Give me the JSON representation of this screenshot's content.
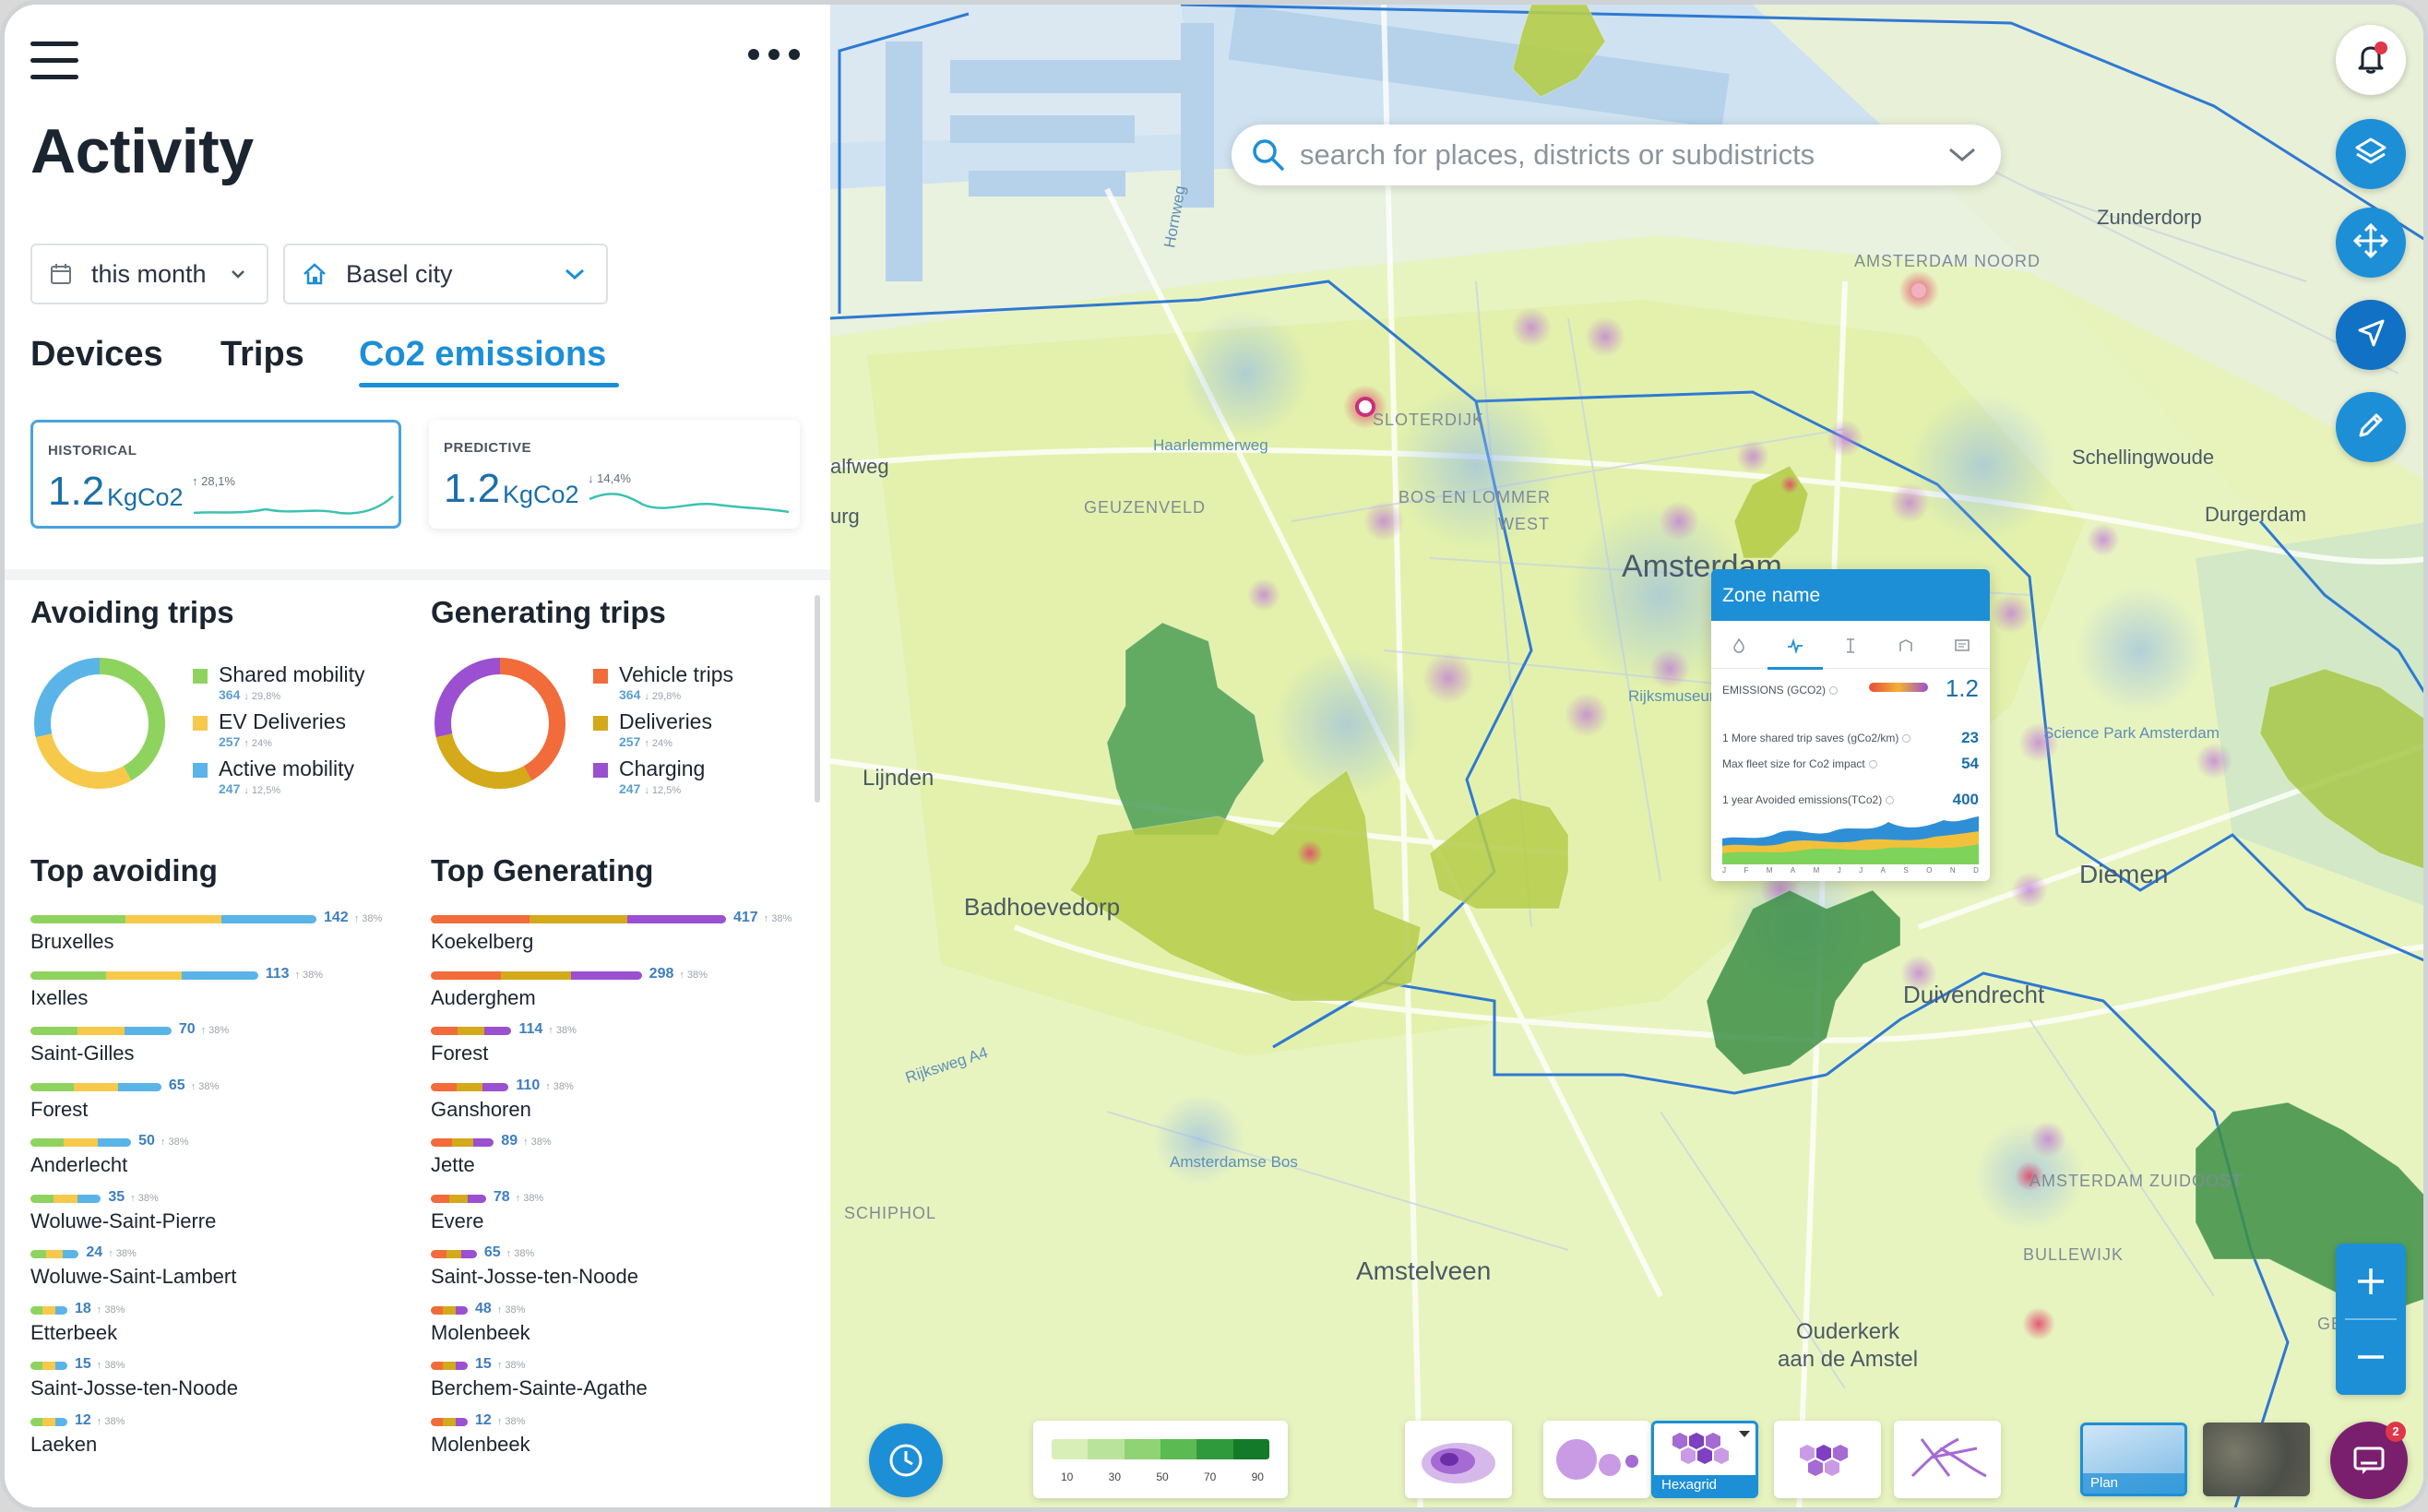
{
  "sidebar": {
    "title": "Activity",
    "filters": {
      "period": "this month",
      "location": "Basel city"
    },
    "tabs": [
      {
        "label": "Devices",
        "active": false
      },
      {
        "label": "Trips",
        "active": false
      },
      {
        "label": "Co2 emissions",
        "active": true
      }
    ],
    "kpis": {
      "historical": {
        "label": "HISTORICAL",
        "value": "1.2",
        "unit": "KgCo2",
        "change": "↑ 28,1%"
      },
      "predictive": {
        "label": "PREDICTIVE",
        "value": "1.2",
        "unit": "KgCo2",
        "change": "↓ 14,4%"
      }
    },
    "avoiding": {
      "title": "Avoiding trips",
      "items": [
        {
          "name": "Shared mobility",
          "value": "364",
          "trend": "↓ 29,8%",
          "color": "#8fd35f"
        },
        {
          "name": "EV Deliveries",
          "value": "257",
          "trend": "↑ 24%",
          "color": "#f7c94b"
        },
        {
          "name": "Active mobility",
          "value": "247",
          "trend": "↓ 12,5%",
          "color": "#5ab4e8"
        }
      ]
    },
    "generating": {
      "title": "Generating trips",
      "items": [
        {
          "name": "Vehicle trips",
          "value": "364",
          "trend": "↓ 29,8%",
          "color": "#f26b3a"
        },
        {
          "name": "Deliveries",
          "value": "257",
          "trend": "↑ 24%",
          "color": "#d4a91a"
        },
        {
          "name": "Charging",
          "value": "247",
          "trend": "↓ 12,5%",
          "color": "#9b4fd1"
        }
      ]
    },
    "top_avoiding": {
      "title": "Top avoiding",
      "trend": "↑ 38%",
      "rows": [
        {
          "name": "Bruxelles",
          "value": 142
        },
        {
          "name": "Ixelles",
          "value": 113
        },
        {
          "name": "Saint-Gilles",
          "value": 70
        },
        {
          "name": "Forest",
          "value": 65
        },
        {
          "name": "Anderlecht",
          "value": 50
        },
        {
          "name": "Woluwe-Saint-Pierre",
          "value": 35
        },
        {
          "name": "Woluwe-Saint-Lambert",
          "value": 24
        },
        {
          "name": "Etterbeek",
          "value": 18
        },
        {
          "name": "Saint-Josse-ten-Noode",
          "value": 15
        },
        {
          "name": "Laeken",
          "value": 12
        }
      ]
    },
    "top_generating": {
      "title": "Top Generating",
      "trend": "↑ 38%",
      "rows": [
        {
          "name": "Koekelberg",
          "value": 417
        },
        {
          "name": "Auderghem",
          "value": 298
        },
        {
          "name": "Forest",
          "value": 114
        },
        {
          "name": "Ganshoren",
          "value": 110
        },
        {
          "name": "Jette",
          "value": 89
        },
        {
          "name": "Evere",
          "value": 78
        },
        {
          "name": "Saint-Josse-ten-Noode",
          "value": 65
        },
        {
          "name": "Molenbeek",
          "value": 48
        },
        {
          "name": "Berchem-Sainte-Agathe",
          "value": 15
        },
        {
          "name": "Molenbeek",
          "value": 12
        }
      ]
    }
  },
  "map": {
    "search_placeholder": "search for places, districts or subdistricts",
    "labels": {
      "amsterdam": "Amsterdam",
      "badhoevedorp": "Badhoevedorp",
      "amstelveen": "Amstelveen",
      "diemen": "Diemen",
      "duivendrecht": "Duivendrecht",
      "ouderkerk1": "Ouderkerk",
      "ouderkerk2": "aan de Amstel",
      "zunderdorp": "Zunderdorp",
      "schellingwoude": "Schellingwoude",
      "lijnden": "Lijnden",
      "halfweg": "alfweg",
      "urg": "urg",
      "durgerdam": "Durgerdam",
      "geuzenveld": "GEUZENVELD",
      "sloterdijk": "SLOTERDIJK",
      "bos_en_lommer": "BOS EN LOMMER",
      "west": "WEST",
      "schiphol": "SCHIPHOL",
      "bullewijk": "BULLEWIJK",
      "amsterdam_noord": "AMSTERDAM NOORD",
      "amsterdam_zuidoost": "AMSTERDAM ZUIDOOST",
      "gein": "GEIN",
      "amsterdamse_bos": "Amsterdamse Bos",
      "science_park": "Science Park Amsterdam",
      "rijksweg_a4": "Rijksweg A4",
      "haarlemmerweg": "Haarlemmerweg",
      "hornweg": "Hornweg",
      "rijksmuseum": "Rijksmuseum"
    },
    "zone_card": {
      "title": "Zone name",
      "emissions_label": "EMISSIONS (GCO2)",
      "emissions_value": "1.2",
      "rows": [
        {
          "label": "1 More shared trip saves (gCo2/km)",
          "value": "23"
        },
        {
          "label": "Max fleet size for Co2 impact",
          "value": "54"
        },
        {
          "label": "1 year Avoided emissions(TCo2)",
          "value": "400"
        }
      ],
      "months": [
        "J",
        "F",
        "M",
        "A",
        "M",
        "J",
        "J",
        "A",
        "S",
        "O",
        "N",
        "D"
      ]
    },
    "legend": {
      "ticks": [
        "10",
        "30",
        "50",
        "70",
        "90"
      ],
      "colors": [
        "#d8f0b8",
        "#b9e39a",
        "#8fd374",
        "#5cba52",
        "#2f9a3c",
        "#137a2a"
      ]
    },
    "viz_modes": {
      "selected": "Hexagrid"
    },
    "basemaps": {
      "selected": "Plan"
    },
    "chat_badge": "2"
  }
}
